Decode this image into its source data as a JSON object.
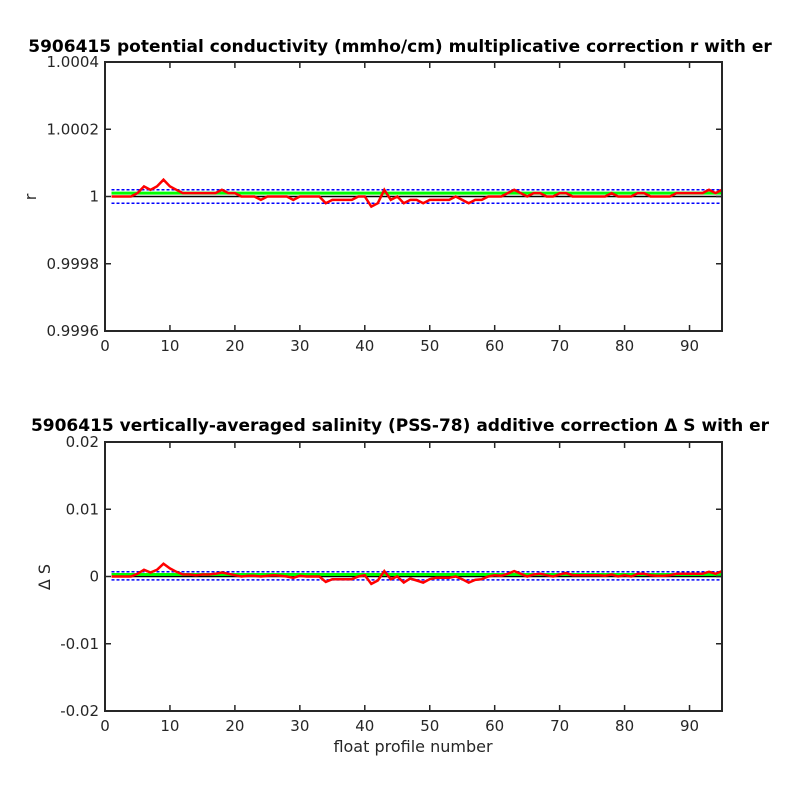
{
  "chart_data": [
    {
      "type": "line",
      "title": "5906415 potential conductivity (mmho/cm) multiplicative correction r with er",
      "xlabel": "",
      "ylabel": "r",
      "xlim": [
        0,
        95
      ],
      "ylim": [
        0.9996,
        1.0004
      ],
      "xticks": [
        0,
        10,
        20,
        30,
        40,
        50,
        60,
        70,
        80,
        90
      ],
      "yticks": [
        0.9996,
        0.9998,
        1,
        1.0002,
        1.0004
      ],
      "ytick_labels": [
        "0.9996",
        "0.9998",
        "1",
        "1.0002",
        "1.0004"
      ],
      "grid": false,
      "series": [
        {
          "color": "#ff0000",
          "x": [
            1,
            2,
            3,
            4,
            5,
            6,
            7,
            8,
            9,
            10,
            11,
            12,
            13,
            14,
            15,
            16,
            17,
            18,
            19,
            20,
            21,
            22,
            23,
            24,
            25,
            26,
            27,
            28,
            29,
            30,
            31,
            32,
            33,
            34,
            35,
            36,
            37,
            38,
            39,
            40,
            41,
            42,
            43,
            44,
            45,
            46,
            47,
            48,
            49,
            50,
            51,
            52,
            53,
            54,
            55,
            56,
            57,
            58,
            59,
            60,
            61,
            62,
            63,
            64,
            65,
            66,
            67,
            68,
            69,
            70,
            71,
            72,
            73,
            74,
            75,
            76,
            77,
            78,
            79,
            80,
            81,
            82,
            83,
            84,
            85,
            86,
            87,
            88,
            89,
            90,
            91,
            92,
            93,
            94,
            95
          ],
          "values": [
            1.0,
            1.0,
            1.0,
            1.0,
            1.00001,
            1.00003,
            1.00002,
            1.00003,
            1.00005,
            1.00003,
            1.00002,
            1.00001,
            1.00001,
            1.00001,
            1.00001,
            1.00001,
            1.00001,
            1.00002,
            1.00001,
            1.00001,
            1.0,
            1.0,
            1.0,
            0.99999,
            1.0,
            1.0,
            1.0,
            1.0,
            0.99999,
            1.0,
            1.0,
            1.0,
            1.0,
            0.99998,
            0.99999,
            0.99999,
            0.99999,
            0.99999,
            1.0,
            1.0,
            0.99997,
            0.99998,
            1.00002,
            0.99999,
            1.0,
            0.99998,
            0.99999,
            0.99999,
            0.99998,
            0.99999,
            0.99999,
            0.99999,
            0.99999,
            1.0,
            0.99999,
            0.99998,
            0.99999,
            0.99999,
            1.0,
            1.0,
            1.0,
            1.00001,
            1.00002,
            1.00001,
            1.0,
            1.00001,
            1.00001,
            1.0,
            1.0,
            1.00001,
            1.00001,
            1.0,
            1.0,
            1.0,
            1.0,
            1.0,
            1.0,
            1.00001,
            1.0,
            1.0,
            1.0,
            1.00001,
            1.00001,
            1.0,
            1.0,
            1.0,
            1.0,
            1.00001,
            1.00001,
            1.00001,
            1.00001,
            1.00001,
            1.00002,
            1.00001,
            1.00002
          ]
        },
        {
          "color": "#000000",
          "x": [
            1,
            95
          ],
          "values": [
            1.0,
            1.0
          ]
        },
        {
          "color": "#00ff00",
          "x": [
            1,
            95
          ],
          "values": [
            1.00001,
            1.00001
          ]
        },
        {
          "color": "#0000ff",
          "x": [
            1,
            95
          ],
          "values": [
            1.00002,
            1.00002
          ],
          "style": "dashed"
        },
        {
          "color": "#0000ff",
          "x": [
            1,
            95
          ],
          "values": [
            0.99998,
            0.99998
          ],
          "style": "dashed"
        }
      ]
    },
    {
      "type": "line",
      "title": "5906415 vertically-averaged salinity (PSS-78) additive correction Δ S with er",
      "xlabel": "float profile number",
      "ylabel": "Δ S",
      "xlim": [
        0,
        95
      ],
      "ylim": [
        -0.02,
        0.02
      ],
      "xticks": [
        0,
        10,
        20,
        30,
        40,
        50,
        60,
        70,
        80,
        90
      ],
      "yticks": [
        -0.02,
        -0.01,
        0,
        0.01,
        0.02
      ],
      "ytick_labels": [
        "-0.02",
        "-0.01",
        "0",
        "0.01",
        "0.02"
      ],
      "grid": false,
      "series": [
        {
          "color": "#ff0000",
          "x": [
            1,
            2,
            3,
            4,
            5,
            6,
            7,
            8,
            9,
            10,
            11,
            12,
            13,
            14,
            15,
            16,
            17,
            18,
            19,
            20,
            21,
            22,
            23,
            24,
            25,
            26,
            27,
            28,
            29,
            30,
            31,
            32,
            33,
            34,
            35,
            36,
            37,
            38,
            39,
            40,
            41,
            42,
            43,
            44,
            45,
            46,
            47,
            48,
            49,
            50,
            51,
            52,
            53,
            54,
            55,
            56,
            57,
            58,
            59,
            60,
            61,
            62,
            63,
            64,
            65,
            66,
            67,
            68,
            69,
            70,
            71,
            72,
            73,
            74,
            75,
            76,
            77,
            78,
            79,
            80,
            81,
            82,
            83,
            84,
            85,
            86,
            87,
            88,
            89,
            90,
            91,
            92,
            93,
            94,
            95
          ],
          "values": [
            0.0,
            0.0,
            0.0,
            0.0,
            0.0004,
            0.001,
            0.0006,
            0.001,
            0.0019,
            0.0012,
            0.0007,
            0.0003,
            0.0003,
            0.0002,
            0.0003,
            0.0003,
            0.0004,
            0.0006,
            0.0004,
            0.0002,
            0.0,
            0.0001,
            0.0001,
            0.0,
            0.0001,
            0.0002,
            0.0001,
            0.0,
            -0.0002,
            0.0001,
            0.0,
            0.0,
            0.0,
            -0.0008,
            -0.0004,
            -0.0004,
            -0.0004,
            -0.0004,
            0.0,
            0.0002,
            -0.0011,
            -0.0006,
            0.0008,
            -0.0004,
            0.0,
            -0.0009,
            -0.0003,
            -0.0006,
            -0.0009,
            -0.0004,
            -0.0002,
            -0.0002,
            -0.0002,
            0.0,
            -0.0004,
            -0.0009,
            -0.0005,
            -0.0004,
            0.0,
            0.0002,
            0.0001,
            0.0004,
            0.0008,
            0.0004,
            0.0,
            0.0003,
            0.0004,
            0.0002,
            0.0,
            0.0003,
            0.0005,
            0.0002,
            0.0002,
            0.0002,
            0.0002,
            0.0002,
            0.0001,
            0.0003,
            0.0,
            0.0002,
            0.0,
            0.0004,
            0.0004,
            0.0002,
            0.0001,
            0.0001,
            0.0002,
            0.0004,
            0.0004,
            0.0004,
            0.0004,
            0.0004,
            0.0007,
            0.0004,
            0.0008
          ]
        },
        {
          "color": "#000000",
          "x": [
            1,
            95
          ],
          "values": [
            0.0,
            0.0
          ]
        },
        {
          "color": "#00ff00",
          "x": [
            1,
            95
          ],
          "values": [
            0.0003,
            0.0003
          ]
        },
        {
          "color": "#0000ff",
          "x": [
            1,
            95
          ],
          "values": [
            0.0007,
            0.0007
          ],
          "style": "dashed"
        },
        {
          "color": "#0000ff",
          "x": [
            1,
            95
          ],
          "values": [
            -0.0005,
            -0.0005
          ],
          "style": "dashed"
        }
      ]
    }
  ]
}
